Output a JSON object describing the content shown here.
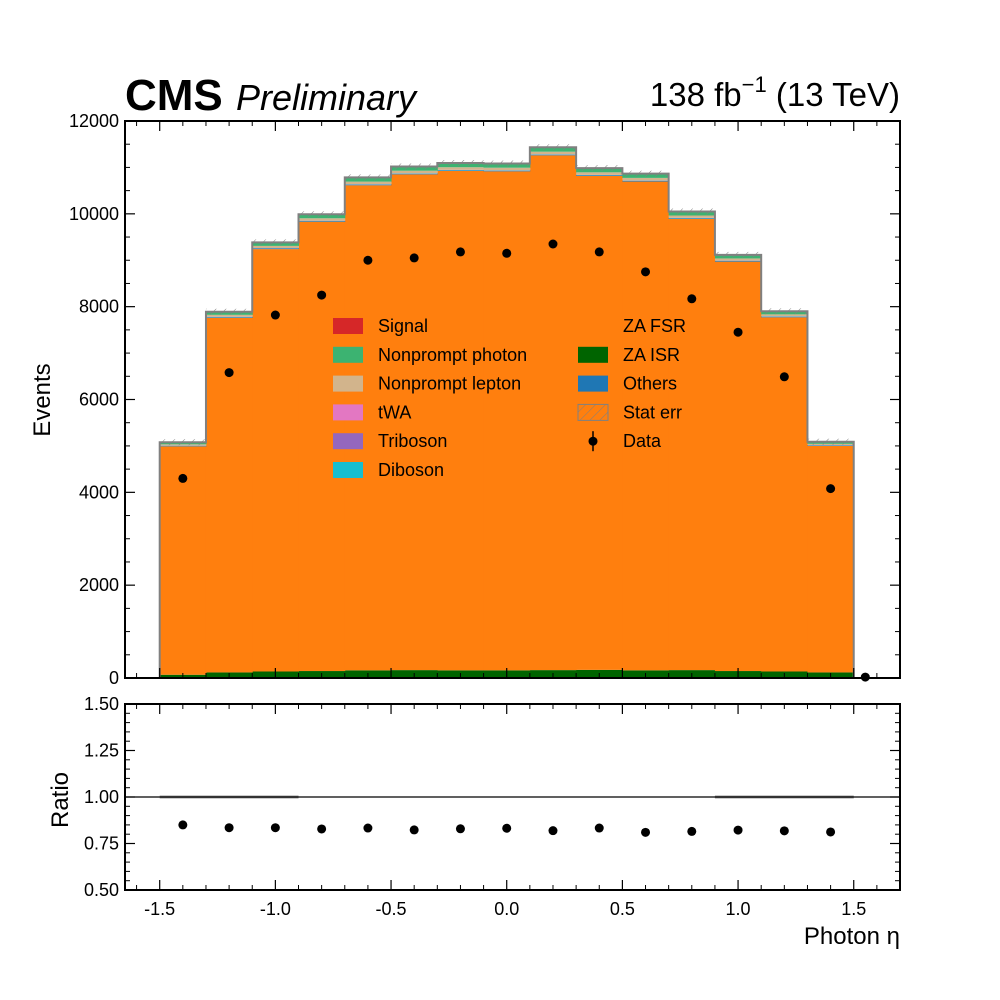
{
  "header": {
    "experiment": "CMS",
    "status": "Preliminary",
    "lumi_value": "138 fb",
    "lumi_exp": "−1",
    "energy": " (13 TeV)"
  },
  "chart_data": [
    {
      "type": "bar",
      "panel": "main",
      "style": "stacked-histogram",
      "xlabel": "Photon η",
      "ylabel": "Events",
      "xlim": [
        -1.65,
        1.7
      ],
      "ylim": [
        0,
        12000
      ],
      "x_ticks": [
        -1.5,
        -1.0,
        -0.5,
        0.0,
        0.5,
        1.0,
        1.5
      ],
      "x_tick_labels": [
        "-1.5",
        "-1.0",
        "-0.5",
        "0.0",
        "0.5",
        "1.0",
        "1.5"
      ],
      "y_ticks": [
        0,
        2000,
        4000,
        6000,
        8000,
        10000,
        12000
      ],
      "y_tick_labels": [
        "0",
        "2000",
        "4000",
        "6000",
        "8000",
        "10000",
        "12000"
      ],
      "bin_edges": [
        -1.5,
        -1.3,
        -1.1,
        -0.9,
        -0.7,
        -0.5,
        -0.3,
        -0.1,
        0.1,
        0.3,
        0.5,
        0.7,
        0.9,
        1.1,
        1.3,
        1.5
      ],
      "series": [
        {
          "name": "ZA ISR",
          "color": "#006400",
          "values": [
            70,
            120,
            140,
            150,
            165,
            170,
            165,
            165,
            170,
            175,
            165,
            170,
            150,
            140,
            120
          ]
        },
        {
          "name": "ZA FSR",
          "color": "#ff7f0e",
          "values": [
            4920,
            7640,
            9100,
            9680,
            10450,
            10680,
            10760,
            10750,
            11090,
            10640,
            10530,
            9720,
            8820,
            7630,
            4880
          ]
        },
        {
          "name": "Others",
          "color": "#1f77b4",
          "values": [
            10,
            15,
            15,
            15,
            15,
            15,
            15,
            15,
            15,
            15,
            15,
            15,
            15,
            15,
            10
          ]
        },
        {
          "name": "Diboson",
          "color": "#17becf",
          "values": [
            5,
            5,
            5,
            5,
            5,
            5,
            5,
            5,
            5,
            5,
            5,
            5,
            5,
            5,
            5
          ]
        },
        {
          "name": "Triboson",
          "color": "#9467bd",
          "values": [
            2,
            2,
            2,
            2,
            2,
            2,
            2,
            2,
            2,
            2,
            2,
            2,
            2,
            2,
            2
          ]
        },
        {
          "name": "tWA",
          "color": "#e377c2",
          "values": [
            2,
            2,
            2,
            2,
            2,
            2,
            2,
            2,
            2,
            2,
            2,
            2,
            2,
            2,
            2
          ]
        },
        {
          "name": "Nonprompt lepton",
          "color": "#d2b48c",
          "values": [
            25,
            40,
            45,
            50,
            55,
            55,
            55,
            55,
            55,
            55,
            55,
            50,
            45,
            40,
            25
          ]
        },
        {
          "name": "Nonprompt photon",
          "color": "#3cb371",
          "values": [
            40,
            60,
            70,
            80,
            85,
            85,
            85,
            85,
            90,
            85,
            85,
            80,
            70,
            60,
            40
          ]
        },
        {
          "name": "Signal",
          "color": "#d62728",
          "values": [
            6,
            6,
            6,
            6,
            6,
            6,
            6,
            6,
            6,
            6,
            6,
            6,
            6,
            6,
            6
          ]
        }
      ],
      "stat_err": {
        "name": "Stat err",
        "color": "#808080"
      },
      "data": {
        "name": "Data",
        "x": [
          -1.4,
          -1.2,
          -1.0,
          -0.8,
          -0.6,
          -0.4,
          -0.2,
          0.0,
          0.2,
          0.4,
          0.6,
          0.8,
          1.0,
          1.2,
          1.4,
          1.55
        ],
        "y": [
          4300,
          6580,
          7820,
          8250,
          9000,
          9050,
          9180,
          9150,
          9350,
          9180,
          8750,
          8170,
          7450,
          6490,
          4080,
          20
        ]
      },
      "legend_placement": "center"
    },
    {
      "type": "scatter",
      "panel": "ratio",
      "ylabel": "Ratio",
      "xlim": [
        -1.65,
        1.7
      ],
      "ylim": [
        0.5,
        1.5
      ],
      "y_ticks": [
        0.5,
        0.75,
        1.0,
        1.25,
        1.5
      ],
      "y_tick_labels": [
        "0.50",
        "0.75",
        "1.00",
        "1.25",
        "1.50"
      ],
      "reference_line": 1.0,
      "x": [
        -1.4,
        -1.2,
        -1.0,
        -0.8,
        -0.6,
        -0.4,
        -0.2,
        0.0,
        0.2,
        0.4,
        0.6,
        0.8,
        1.0,
        1.2,
        1.4
      ],
      "y": [
        0.85,
        0.835,
        0.835,
        0.828,
        0.833,
        0.823,
        0.829,
        0.832,
        0.819,
        0.833,
        0.81,
        0.815,
        0.822,
        0.818,
        0.812
      ]
    }
  ]
}
